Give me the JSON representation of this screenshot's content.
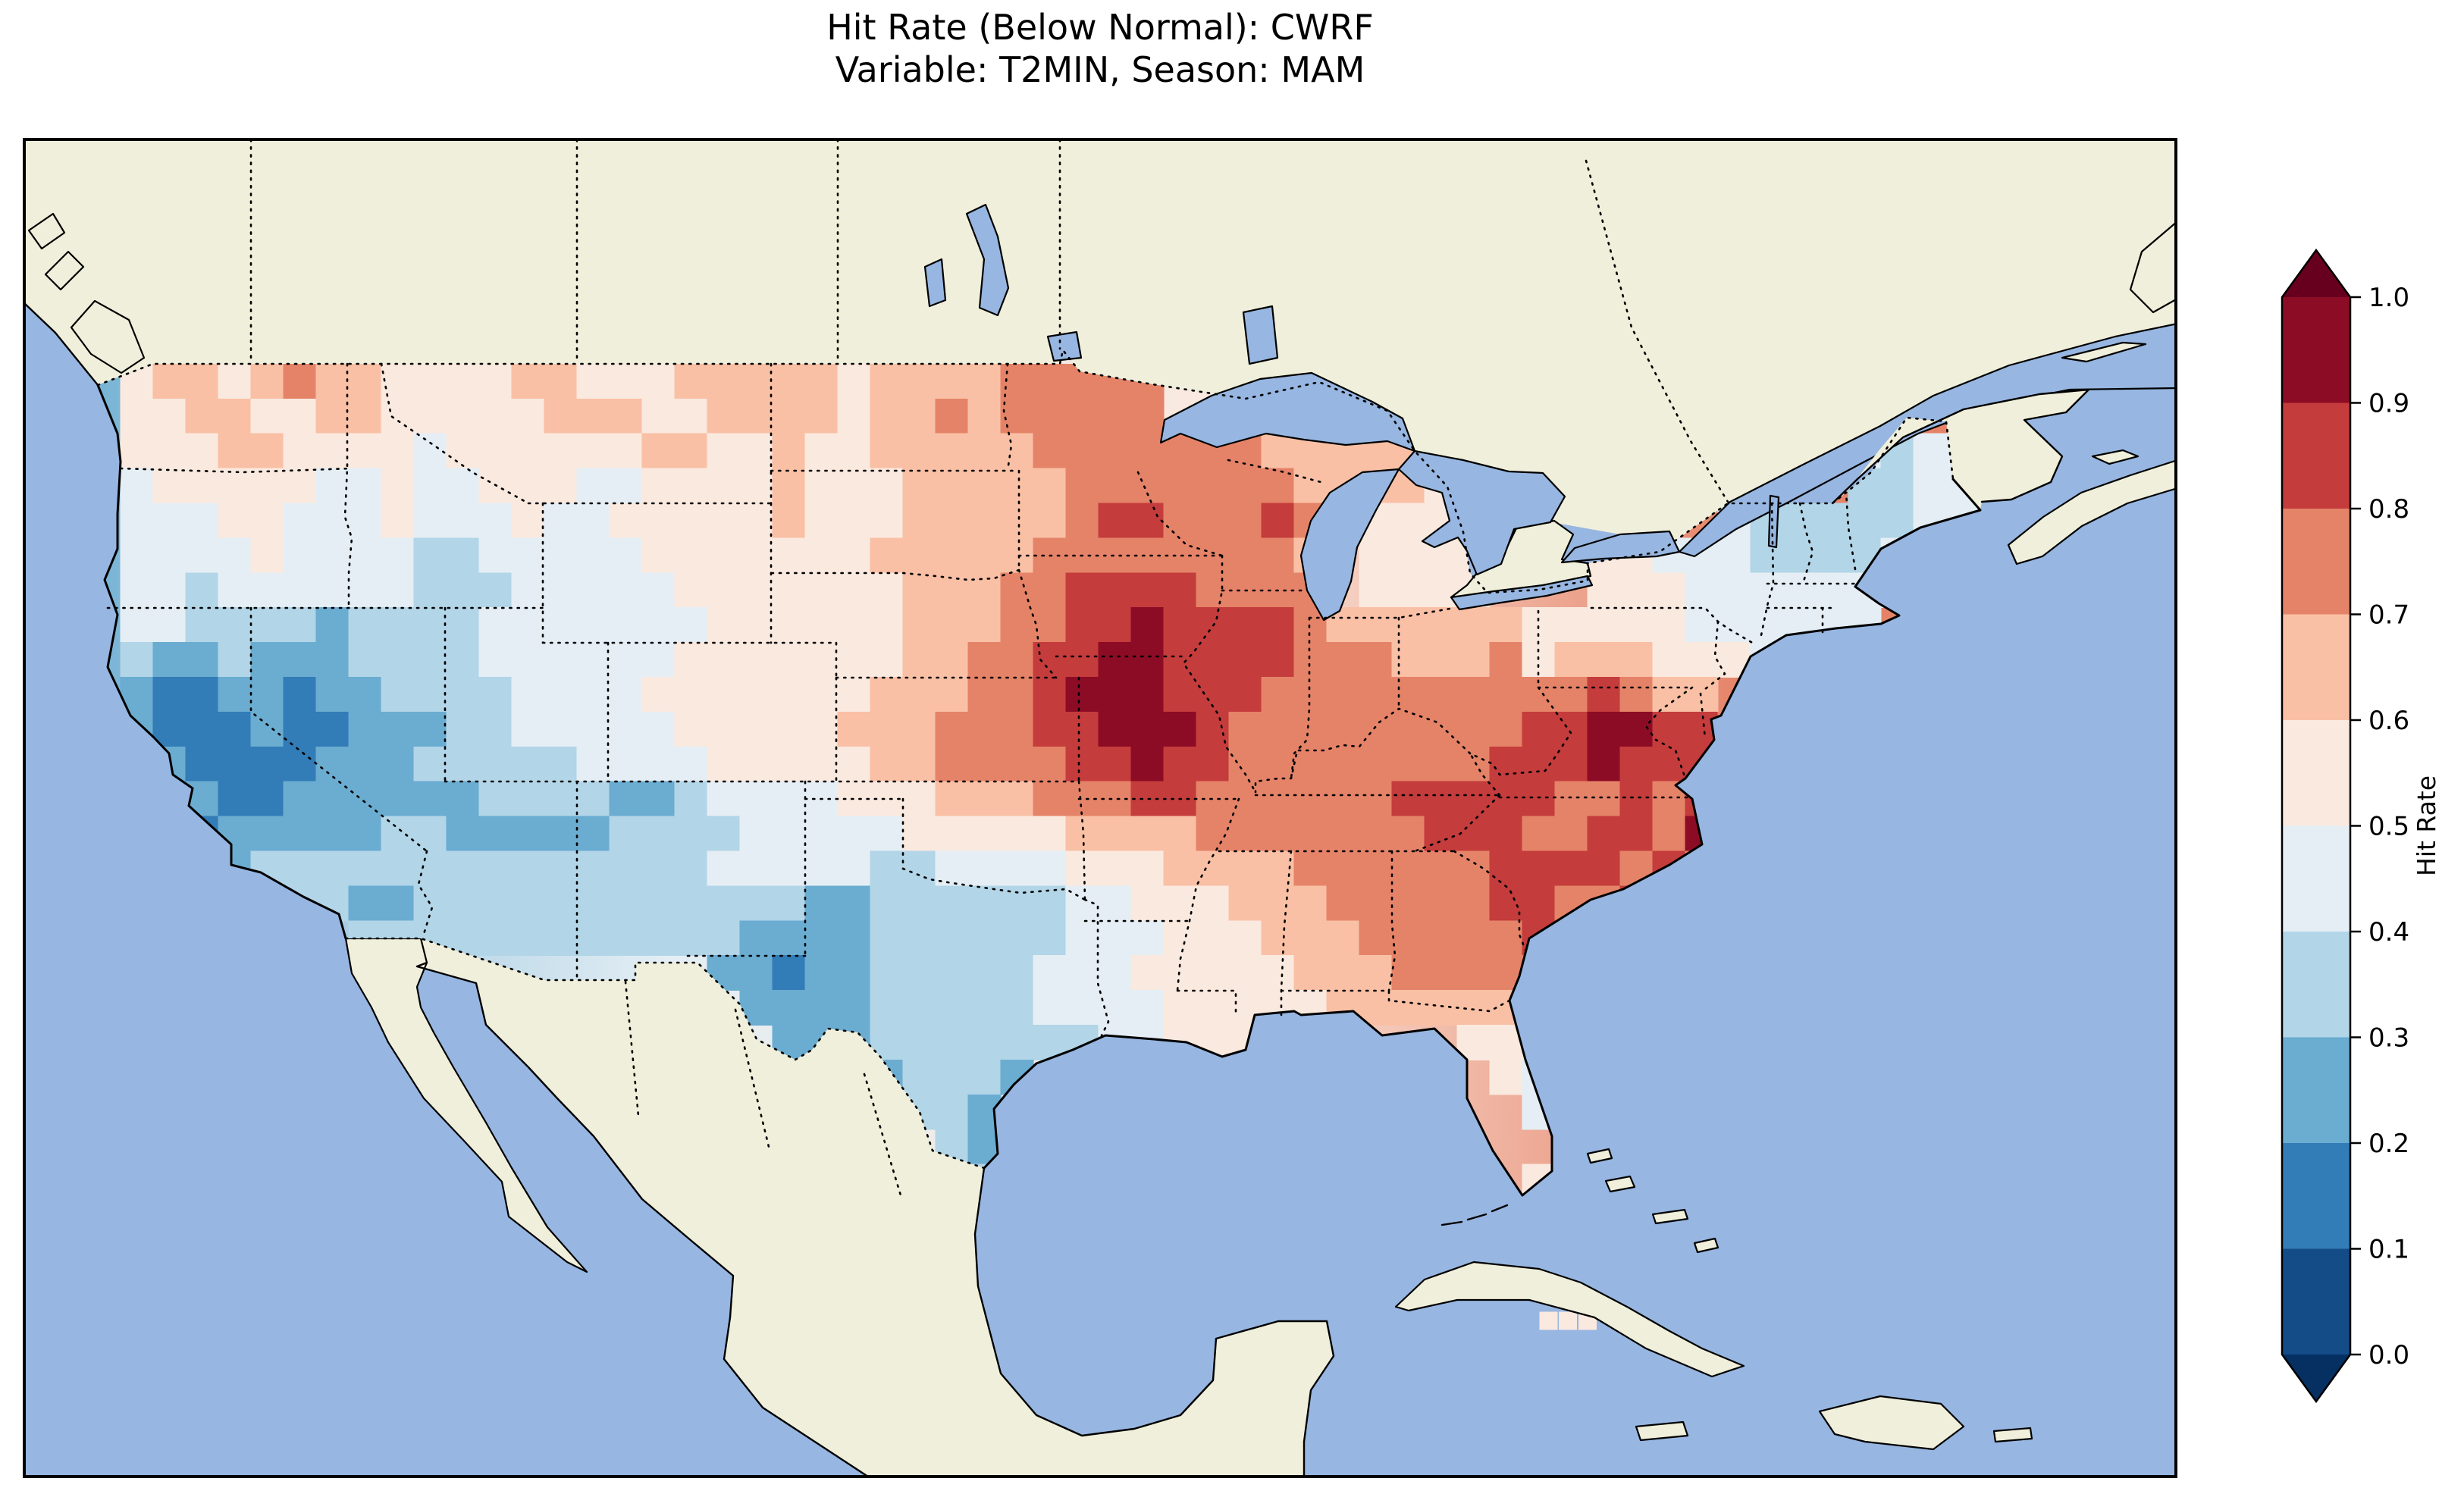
{
  "figure": {
    "title_line1": "Hit Rate (Below Normal): CWRF",
    "title_line2": "Variable: T2MIN, Season: MAM",
    "background": "#ffffff"
  },
  "map": {
    "ocean_color": "#97b6e1",
    "land_color": "#efefdb",
    "coastline_color": "#000000",
    "border_style": "dotted"
  },
  "colorbar": {
    "label": "Hit Rate",
    "ticks": [
      "1.0",
      "0.9",
      "0.8",
      "0.7",
      "0.6",
      "0.5",
      "0.4",
      "0.3",
      "0.2",
      "0.1",
      "0.0"
    ],
    "bin_colors_low_to_high": [
      "#134c87",
      "#327cb7",
      "#6bacd1",
      "#b2d5e7",
      "#e4eef4",
      "#fae9df",
      "#f9c0a5",
      "#e58368",
      "#c43c3c",
      "#8d0c25"
    ],
    "under_color": "#053061",
    "over_color": "#67001f"
  },
  "chart_data": {
    "type": "heatmap",
    "title": "Hit Rate (Below Normal): CWRF",
    "subtitle": "Variable: T2MIN, Season: MAM",
    "value_label": "Hit Rate",
    "value_range": [
      0.0,
      1.0
    ],
    "bin_width": 0.1,
    "colorbar_position": "right",
    "x_axis": "longitude, 1-degree cells from -125 (west) eastward",
    "y_axis": "latitude, 1-degree cells from 49 (north) southward",
    "grid": {
      "lon_start": -125,
      "dlon": 1,
      "lat_start": 49,
      "dlat": 1,
      "encoding": "each char = hit-rate bin index 0-9 (bin = [i/10,(i+1)/10]); '~N' = N cells with no data",
      "rows": [
        [
          "~1",
          "56656766",
          "5555665556666",
          "656666",
          "77777"
        ],
        [
          "~1",
          "55665566",
          "55",
          "55566655666",
          "656676",
          "77777",
          "~21",
          "44"
        ],
        [
          "~1",
          "55566555",
          "545",
          "5555566556",
          "556666",
          "677777",
          "776",
          "66665",
          "~12",
          "4344"
        ],
        [
          "~1",
          "455555445",
          "445",
          "554455556",
          "555666",
          "667777",
          "77766",
          "665",
          "~12",
          "3344"
        ],
        [
          "~1",
          "444554445",
          "4445",
          "44555556",
          "555666",
          "667887",
          "77876",
          "5555",
          "~7",
          "433",
          "33",
          "344"
        ],
        [
          "~1",
          "444454444",
          "3344",
          "44455555",
          "556666",
          "6777",
          "777776",
          "~1",
          "5555",
          "~3",
          "5544433",
          "33",
          "44"
        ],
        [
          "~1",
          "443444444",
          "3334",
          "44445555",
          "555666",
          "7788887",
          "777",
          "~1",
          "5555",
          "~3",
          "5554444",
          "444"
        ],
        [
          "~1",
          "4433",
          "33233",
          "3344",
          "44444555",
          "5556667",
          "788988",
          "887",
          "666",
          "666",
          "55555",
          "4444",
          "44"
        ],
        [
          "~1",
          "3223",
          "22233",
          "3344",
          "44445555",
          "5556677",
          "889988",
          "887",
          "776",
          "667",
          "56665",
          "554"
        ],
        [
          "~1",
          "2112",
          "21223",
          "3334",
          "44455555",
          "5566677",
          "899988",
          "877",
          "777",
          "777",
          "77876",
          "6"
        ],
        [
          "~1",
          "21112",
          "1122",
          "2334",
          "44445555",
          "5666777",
          "889998",
          "777",
          "77",
          "7777",
          "889",
          "988",
          "7"
        ],
        [
          "~1",
          "32111",
          "1222",
          "3333",
          "34444555",
          "5566777",
          "788988",
          "777777",
          "7788",
          "89888"
        ],
        [
          "~1",
          "322112",
          "222",
          "2233",
          "33223444",
          "455566",
          "6",
          "77788",
          "777777888",
          "8877878"
        ],
        [
          "~1",
          "221222",
          "2233222",
          "22333344",
          "444555",
          "5566",
          "6677",
          "777778",
          "887",
          "78879"
        ],
        [
          "~1",
          "32223",
          "33333333",
          "33333444",
          "443344",
          "4455",
          "5666",
          "677",
          "777",
          "7888",
          "8787"
        ],
        [
          "~2",
          "3223",
          "33223333",
          "333333",
          "33223333",
          "3344",
          "5556",
          "667",
          "777",
          "7887",
          "787"
        ],
        [
          "~8",
          "333333",
          "33333",
          "3222233333344",
          "45556",
          "66",
          "777",
          "77887"
        ],
        [
          "~19",
          "221223333344",
          "455555",
          "66",
          "677",
          "77787"
        ],
        [
          "~20",
          "22223333344",
          "445555",
          "5666",
          "666665"
        ],
        [
          "~21",
          "222333333",
          "344555",
          "~6",
          "55545"
        ],
        [
          "~23",
          "223332",
          "~14",
          "5445"
        ],
        [
          "~24",
          "2332",
          "~16",
          "455"
        ],
        [
          "~26",
          "32",
          "~17",
          "55"
        ],
        [
          "~27",
          "3",
          "~16",
          "54"
        ]
      ]
    },
    "extra_cells": [
      {
        "lon": -80.2,
        "lat": 21.5,
        "bin": 5
      },
      {
        "lon": -79.6,
        "lat": 21.5,
        "bin": 5
      },
      {
        "lon": -79.0,
        "lat": 21.5,
        "bin": 5
      }
    ]
  }
}
